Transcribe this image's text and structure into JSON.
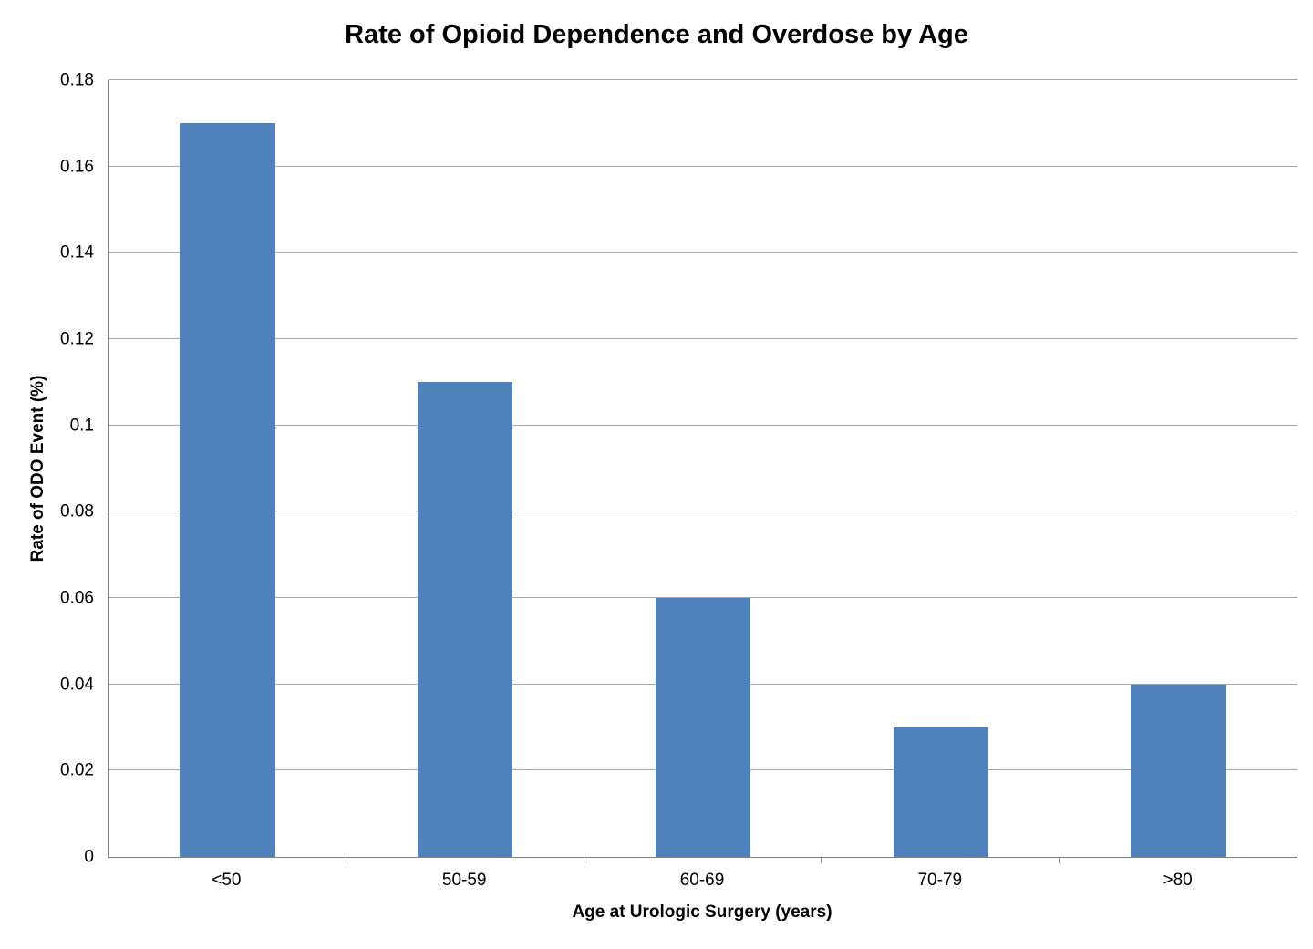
{
  "chart_data": {
    "type": "bar",
    "title": "Rate of Opioid Dependence and Overdose by Age",
    "categories": [
      "<50",
      "50-59",
      "60-69",
      "70-79",
      ">80"
    ],
    "values": [
      0.17,
      0.11,
      0.06,
      0.03,
      0.04
    ],
    "xlabel": "Age at Urologic Surgery (years)",
    "ylabel": "Rate of ODO Event (%)",
    "ylim": [
      0,
      0.18
    ],
    "yticks": [
      0,
      0.02,
      0.04,
      0.06,
      0.08,
      0.1,
      0.12,
      0.14,
      0.16,
      0.18
    ],
    "grid": "horizontal",
    "legend": "none",
    "bar_color": "#4f81bd",
    "gridline_color": "#a6a6a6",
    "axis_color": "#7f7f7f",
    "background": "#ffffff"
  }
}
